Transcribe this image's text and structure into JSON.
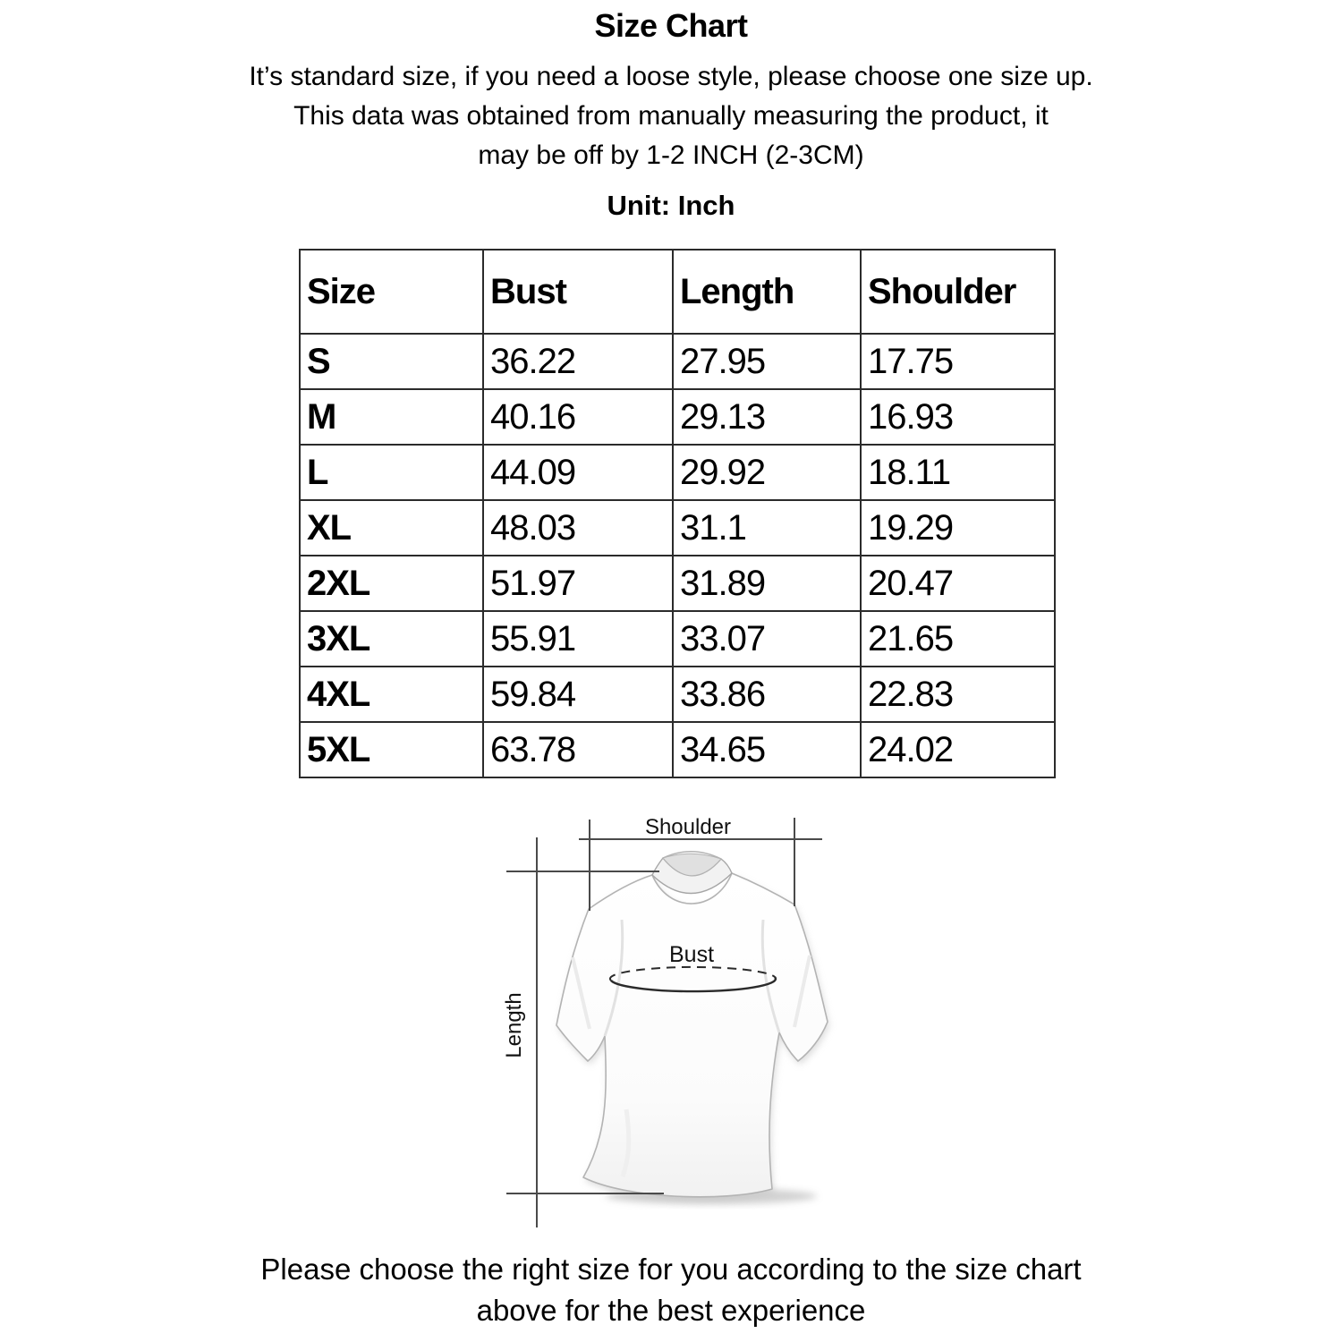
{
  "header": {
    "title": "Size Chart",
    "desc_lines": [
      "It’s standard size, if you need a loose style, please choose one size up.",
      "This data was obtained from manually measuring the product, it",
      "may be off by 1-2 INCH (2-3CM)"
    ],
    "unit_label": "Unit: Inch"
  },
  "chart_data": {
    "type": "table",
    "title": "Size Chart",
    "unit": "Inch",
    "columns": [
      "Size",
      "Bust",
      "Length",
      "Shoulder"
    ],
    "rows": [
      [
        "S",
        "36.22",
        "27.95",
        "17.75"
      ],
      [
        "M",
        "40.16",
        "29.13",
        "16.93"
      ],
      [
        "L",
        "44.09",
        "29.92",
        "18.11"
      ],
      [
        "XL",
        "48.03",
        "31.1",
        "19.29"
      ],
      [
        "2XL",
        "51.97",
        "31.89",
        "20.47"
      ],
      [
        "3XL",
        "55.91",
        "33.07",
        "21.65"
      ],
      [
        "4XL",
        "59.84",
        "33.86",
        "22.83"
      ],
      [
        "5XL",
        "63.78",
        "34.65",
        "24.02"
      ]
    ]
  },
  "diagram": {
    "shoulder_label": "Shoulder",
    "length_label": "Length",
    "bust_label": "Bust"
  },
  "footer": {
    "lines": [
      "Please choose the right size for you according to the size chart",
      "above for the best experience"
    ]
  },
  "colors": {
    "text": "#000000",
    "table_border": "#2b2b2b",
    "measure_line": "#4a4a4a",
    "shirt_outline": "#b3b3b3"
  }
}
